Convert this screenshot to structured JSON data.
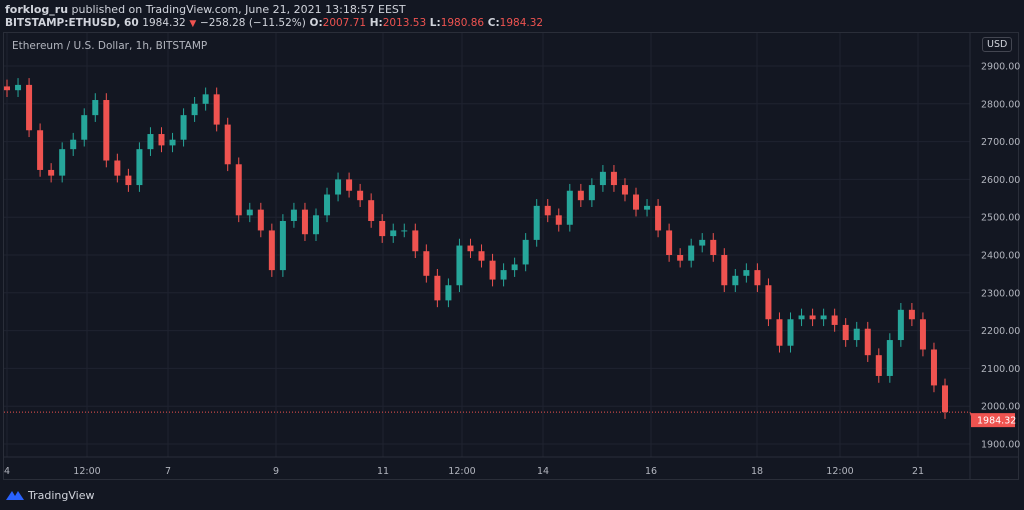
{
  "header": {
    "author": "forklog_ru",
    "published": "published on TradingView.com, June 21, 2021 13:18:57 EEST",
    "symbol": "BITSTAMP:ETHUSD, 60",
    "last": "1984.32",
    "change": "−258.28 (−11.52%)",
    "o_label": "O:",
    "o": "2007.71",
    "h_label": "H:",
    "h": "2013.53",
    "l_label": "L:",
    "l": "1980.86",
    "c_label": "C:",
    "c": "1984.32"
  },
  "chart_title": "Ethereum / U.S. Dollar, 1h, BITSTAMP",
  "currency": "USD",
  "brand": "TradingView",
  "colors": {
    "background": "#131722",
    "up": "#26a69a",
    "down": "#ef5350",
    "grid": "#1f2330",
    "text": "#b2b5be",
    "price_line": "#ef5350"
  },
  "chart_data": {
    "type": "candlestick",
    "title": "Ethereum / U.S. Dollar, 1h, BITSTAMP",
    "ylim": [
      1850,
      2950
    ],
    "y_ticks": [
      "1900.00",
      "2000.00",
      "2100.00",
      "2200.00",
      "2300.00",
      "2400.00",
      "2500.00",
      "2600.00",
      "2700.00",
      "2800.00",
      "2900.00"
    ],
    "x_ticks": [
      "4",
      "12:00",
      "7",
      "9",
      "11",
      "12:00",
      "14",
      "16",
      "18",
      "12:00",
      "21"
    ],
    "last_price": 1984.32,
    "last_price_label": "1984.32",
    "grid": true,
    "close": [
      2836,
      2850,
      2730,
      2625,
      2610,
      2680,
      2705,
      2770,
      2810,
      2650,
      2610,
      2585,
      2680,
      2720,
      2690,
      2705,
      2770,
      2800,
      2825,
      2745,
      2640,
      2505,
      2520,
      2465,
      2360,
      2490,
      2520,
      2455,
      2505,
      2560,
      2600,
      2570,
      2545,
      2490,
      2450,
      2465,
      2465,
      2410,
      2345,
      2280,
      2320,
      2425,
      2410,
      2385,
      2335,
      2360,
      2375,
      2440,
      2530,
      2505,
      2480,
      2570,
      2545,
      2585,
      2620,
      2585,
      2560,
      2520,
      2530,
      2465,
      2400,
      2385,
      2425,
      2440,
      2400,
      2320,
      2345,
      2360,
      2320,
      2230,
      2160,
      2230,
      2240,
      2230,
      2240,
      2215,
      2175,
      2205,
      2135,
      2080,
      2175,
      2255,
      2230,
      2150,
      2055,
      1984.32
    ]
  }
}
